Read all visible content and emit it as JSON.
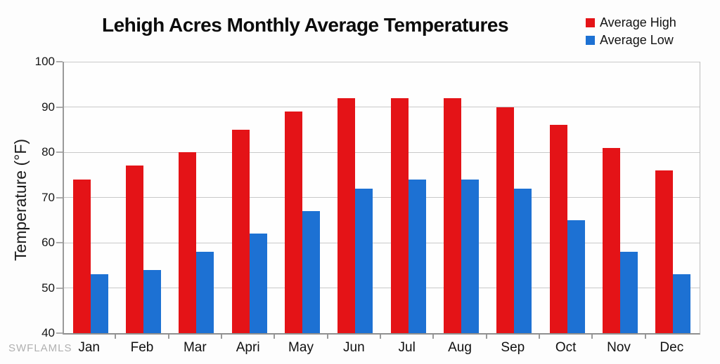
{
  "watermark": "SWFLAMLS",
  "chart_data": {
    "type": "bar",
    "title": "Lehigh Acres Monthly Average Temperatures",
    "xlabel": "",
    "ylabel": "Temperature (°F)",
    "categories": [
      "Jan",
      "Feb",
      "Mar",
      "Apri",
      "May",
      "Jun",
      "Jul",
      "Aug",
      "Sep",
      "Oct",
      "Nov",
      "Dec"
    ],
    "series": [
      {
        "name": "Average High",
        "color": "#e41317",
        "values": [
          74,
          77,
          80,
          85,
          89,
          92,
          92,
          92,
          90,
          86,
          81,
          76
        ]
      },
      {
        "name": "Average Low",
        "color": "#1d71d3",
        "values": [
          53,
          54,
          58,
          62,
          67,
          72,
          74,
          74,
          72,
          65,
          58,
          53
        ]
      }
    ],
    "ylim": [
      40,
      100
    ],
    "ytick_step": 10,
    "yticks": [
      40,
      50,
      60,
      70,
      80,
      90,
      100
    ],
    "grid": true,
    "legend_position": "top-right",
    "colors": {
      "grid": "#c9c9c9",
      "axis": "#9a9a9a",
      "text": "#111111",
      "watermark": "#b0b0b0"
    }
  }
}
